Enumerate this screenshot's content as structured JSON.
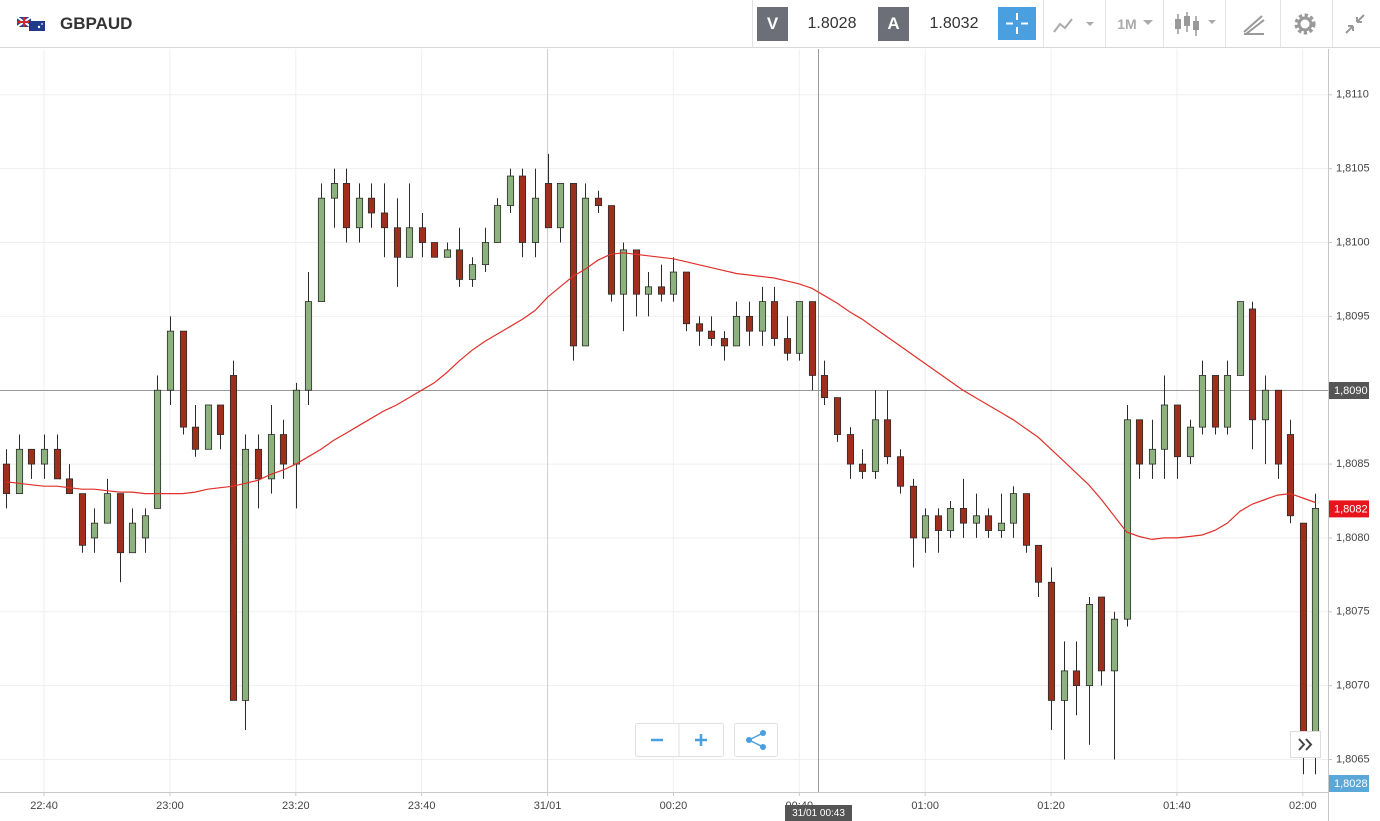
{
  "toolbar": {
    "instrument": "GBPAUD",
    "sell_label": "V",
    "sell_price": "1.8028",
    "buy_label": "A",
    "buy_price": "1.8032",
    "timeframe": "1M"
  },
  "crosshair": {
    "price_label": "1,8090",
    "time_label": "31/01 00:43"
  },
  "last_price_label": "1,8082",
  "bid_label": "1,8028",
  "chart_data": {
    "type": "candlestick",
    "x": [
      "22:34",
      "22:36",
      "22:38",
      "22:40",
      "22:42",
      "22:44",
      "22:46",
      "22:48",
      "22:50",
      "22:52",
      "22:54",
      "22:56",
      "22:58",
      "23:00",
      "23:02",
      "23:04",
      "23:06",
      "23:08",
      "23:10",
      "23:12",
      "23:14",
      "23:16",
      "23:18",
      "23:20",
      "23:22",
      "23:24",
      "23:26",
      "23:28",
      "23:30",
      "23:32",
      "23:34",
      "23:36",
      "23:38",
      "23:40",
      "23:42",
      "23:44",
      "23:46",
      "23:48",
      "23:50",
      "23:52",
      "23:54",
      "23:56",
      "23:58",
      "00:00",
      "00:02",
      "00:04",
      "00:06",
      "00:08",
      "00:10",
      "00:12",
      "00:14",
      "00:16",
      "00:18",
      "00:20",
      "00:22",
      "00:24",
      "00:26",
      "00:28",
      "00:30",
      "00:32",
      "00:34",
      "00:36",
      "00:38",
      "00:40",
      "00:42",
      "00:44",
      "00:46",
      "00:48",
      "00:50",
      "00:52",
      "00:54",
      "00:56",
      "00:58",
      "01:00",
      "01:02",
      "01:04",
      "01:06",
      "01:08",
      "01:10",
      "01:12",
      "01:14",
      "01:16",
      "01:18",
      "01:20",
      "01:22",
      "01:24",
      "01:26",
      "01:28",
      "01:30",
      "01:32",
      "01:34",
      "01:36",
      "01:38",
      "01:40",
      "01:42",
      "01:44",
      "01:46",
      "01:48",
      "01:50",
      "01:52",
      "01:54",
      "01:56",
      "01:58",
      "02:00",
      "02:02"
    ],
    "open": [
      1.8085,
      1.8083,
      1.8086,
      1.8085,
      1.8086,
      1.8084,
      1.8083,
      1.808,
      1.8081,
      1.8083,
      1.8079,
      1.808,
      1.8082,
      1.809,
      1.8094,
      1.80875,
      1.8086,
      1.8089,
      1.8091,
      1.8069,
      1.8086,
      1.8084,
      1.8087,
      1.8085,
      1.809,
      1.8096,
      1.8103,
      1.8104,
      1.8101,
      1.8103,
      1.8102,
      1.8101,
      1.8099,
      1.8101,
      1.81,
      1.8099,
      1.80995,
      1.80975,
      1.80985,
      1.81,
      1.81025,
      1.81045,
      1.81,
      1.8104,
      1.8101,
      1.8104,
      1.8093,
      1.8103,
      1.81025,
      1.80965,
      1.80995,
      1.80965,
      1.8097,
      1.80965,
      1.8098,
      1.80945,
      1.8094,
      1.80935,
      1.8093,
      1.8095,
      1.8094,
      1.8096,
      1.80935,
      1.80925,
      1.8096,
      1.8091,
      1.80895,
      1.8087,
      1.8085,
      1.80845,
      1.8088,
      1.80855,
      1.80835,
      1.808,
      1.80815,
      1.80805,
      1.8082,
      1.8081,
      1.80815,
      1.80805,
      1.8081,
      1.8083,
      1.80795,
      1.8077,
      1.8069,
      1.8071,
      1.807,
      1.8076,
      1.8071,
      1.80745,
      1.8088,
      1.8085,
      1.8086,
      1.8089,
      1.80855,
      1.80875,
      1.8091,
      1.80875,
      1.8091,
      1.80955,
      1.8088,
      1.809,
      1.8087,
      1.8081,
      1.8066
    ],
    "high": [
      1.8086,
      1.8087,
      1.8086,
      1.8087,
      1.8087,
      1.8085,
      1.8083,
      1.8082,
      1.8084,
      1.8083,
      1.8082,
      1.8082,
      1.8091,
      1.8095,
      1.8094,
      1.8089,
      1.8089,
      1.8089,
      1.8092,
      1.8087,
      1.8087,
      1.8089,
      1.8088,
      1.80905,
      1.8098,
      1.8104,
      1.8105,
      1.8105,
      1.8104,
      1.8104,
      1.8104,
      1.8103,
      1.8104,
      1.8102,
      1.81,
      1.81,
      1.8101,
      1.8099,
      1.8101,
      1.8103,
      1.8105,
      1.8105,
      1.8105,
      1.8106,
      1.8104,
      1.8104,
      1.8104,
      1.81035,
      1.81025,
      1.81,
      1.80995,
      1.8098,
      1.80985,
      1.8099,
      1.8098,
      1.8095,
      1.8095,
      1.8094,
      1.8096,
      1.8096,
      1.8097,
      1.8097,
      1.8095,
      1.8096,
      1.8096,
      1.8092,
      1.80895,
      1.80875,
      1.8086,
      1.809,
      1.809,
      1.8086,
      1.8084,
      1.8082,
      1.8082,
      1.80825,
      1.8084,
      1.8083,
      1.8082,
      1.8083,
      1.80835,
      1.8083,
      1.80795,
      1.8078,
      1.8073,
      1.8073,
      1.8076,
      1.8076,
      1.8075,
      1.8089,
      1.8088,
      1.8088,
      1.8091,
      1.8089,
      1.8088,
      1.8092,
      1.8091,
      1.8092,
      1.8096,
      1.8096,
      1.8091,
      1.809,
      1.8088,
      1.8081,
      1.8083
    ],
    "low": [
      1.8082,
      1.8083,
      1.8084,
      1.8084,
      1.8084,
      1.8083,
      1.8079,
      1.8079,
      1.8081,
      1.8077,
      1.8079,
      1.8079,
      1.8082,
      1.8089,
      1.8087,
      1.80855,
      1.8086,
      1.8086,
      1.8069,
      1.8067,
      1.8082,
      1.8083,
      1.8084,
      1.8082,
      1.8089,
      1.8096,
      1.8101,
      1.81,
      1.81,
      1.8101,
      1.8099,
      1.8097,
      1.8099,
      1.8099,
      1.8099,
      1.8099,
      1.8097,
      1.8097,
      1.8098,
      1.81,
      1.8102,
      1.8099,
      1.8099,
      1.8101,
      1.81,
      1.8092,
      1.8093,
      1.8102,
      1.8096,
      1.8094,
      1.8095,
      1.8095,
      1.8096,
      1.8096,
      1.8094,
      1.8093,
      1.8093,
      1.8092,
      1.8093,
      1.8093,
      1.8093,
      1.8093,
      1.8092,
      1.8092,
      1.809,
      1.8089,
      1.80865,
      1.8084,
      1.8084,
      1.8084,
      1.8085,
      1.8083,
      1.8078,
      1.8079,
      1.8079,
      1.808,
      1.808,
      1.808,
      1.808,
      1.808,
      1.808,
      1.8079,
      1.8076,
      1.8067,
      1.8065,
      1.8068,
      1.8066,
      1.807,
      1.8065,
      1.8074,
      1.8084,
      1.8084,
      1.8084,
      1.8084,
      1.8085,
      1.8087,
      1.8087,
      1.8087,
      1.8091,
      1.8086,
      1.8085,
      1.8084,
      1.8081,
      1.8064,
      1.8064
    ],
    "close": [
      1.8083,
      1.8086,
      1.8085,
      1.8086,
      1.8084,
      1.8083,
      1.80795,
      1.8081,
      1.8083,
      1.8079,
      1.8081,
      1.80815,
      1.809,
      1.8094,
      1.80875,
      1.8086,
      1.8089,
      1.8087,
      1.8069,
      1.8086,
      1.8084,
      1.8087,
      1.8085,
      1.809,
      1.8096,
      1.8103,
      1.8104,
      1.8101,
      1.8103,
      1.8102,
      1.8101,
      1.8099,
      1.8101,
      1.81,
      1.8099,
      1.80995,
      1.80975,
      1.80985,
      1.81,
      1.81025,
      1.81045,
      1.81,
      1.8103,
      1.8101,
      1.8104,
      1.8093,
      1.8103,
      1.81025,
      1.80965,
      1.80995,
      1.80965,
      1.8097,
      1.80965,
      1.8098,
      1.80945,
      1.8094,
      1.80935,
      1.8093,
      1.8095,
      1.8094,
      1.8096,
      1.80935,
      1.80925,
      1.8096,
      1.8091,
      1.80895,
      1.8087,
      1.8085,
      1.80845,
      1.8088,
      1.80855,
      1.80835,
      1.808,
      1.80815,
      1.80805,
      1.8082,
      1.8081,
      1.80815,
      1.80805,
      1.8081,
      1.8083,
      1.80795,
      1.8077,
      1.8069,
      1.8071,
      1.807,
      1.80755,
      1.8071,
      1.80745,
      1.8088,
      1.8085,
      1.8086,
      1.8089,
      1.80855,
      1.80875,
      1.8091,
      1.80875,
      1.8091,
      1.8096,
      1.8088,
      1.809,
      1.8085,
      1.80815,
      1.8066,
      1.8082
    ],
    "up_color": "#8db27d",
    "down_color": "#9e2f1d",
    "moving_average": {
      "color": "#e0302a",
      "values": [
        1.80838,
        1.80837,
        1.80836,
        1.80835,
        1.80835,
        1.80834,
        1.80833,
        1.80833,
        1.80832,
        1.80831,
        1.80831,
        1.8083,
        1.8083,
        1.8083,
        1.8083,
        1.80831,
        1.80833,
        1.80834,
        1.80835,
        1.80837,
        1.80839,
        1.80843,
        1.80846,
        1.8085,
        1.80855,
        1.8086,
        1.80866,
        1.80871,
        1.80876,
        1.80881,
        1.80886,
        1.8089,
        1.80895,
        1.809,
        1.80905,
        1.80912,
        1.8092,
        1.80927,
        1.80933,
        1.80938,
        1.80943,
        1.80948,
        1.80954,
        1.80963,
        1.8097,
        1.80977,
        1.80982,
        1.80988,
        1.80992,
        1.80993,
        1.80992,
        1.80991,
        1.8099,
        1.80989,
        1.80987,
        1.80985,
        1.80983,
        1.80981,
        1.80979,
        1.80978,
        1.80977,
        1.80976,
        1.80974,
        1.80972,
        1.80969,
        1.80964,
        1.80959,
        1.80953,
        1.80948,
        1.80942,
        1.80936,
        1.8093,
        1.80924,
        1.80918,
        1.80912,
        1.80906,
        1.809,
        1.80895,
        1.8089,
        1.80885,
        1.8088,
        1.80874,
        1.80868,
        1.8086,
        1.80852,
        1.80844,
        1.80836,
        1.80826,
        1.80815,
        1.80804,
        1.80801,
        1.80799,
        1.808,
        1.808,
        1.80801,
        1.80802,
        1.80805,
        1.8081,
        1.80818,
        1.80823,
        1.80826,
        1.80829,
        1.8083,
        1.80827,
        1.80824
      ]
    },
    "xlim": [
      "22:33",
      "02:04"
    ],
    "xticks": [
      "22:40",
      "23:00",
      "23:20",
      "23:40",
      {
        "value": "00:00",
        "label": "31/01"
      },
      "00:20",
      "00:40",
      "01:00",
      "01:20",
      "01:40",
      "02:00"
    ],
    "ylim": [
      1.80628,
      1.81131
    ],
    "yticks": [
      {
        "value": 1.8065,
        "label": "1,8065"
      },
      {
        "value": 1.807,
        "label": "1,8070"
      },
      {
        "value": 1.8075,
        "label": "1,8075"
      },
      {
        "value": 1.808,
        "label": "1,8080"
      },
      {
        "value": 1.8085,
        "label": "1,8085"
      },
      {
        "value": 1.809,
        "label": "1,8090"
      },
      {
        "value": 1.8095,
        "label": "1,8095"
      },
      {
        "value": 1.81,
        "label": "1,8100"
      },
      {
        "value": 1.8105,
        "label": "1,8105"
      },
      {
        "value": 1.811,
        "label": "1,8110"
      }
    ],
    "grid": true
  }
}
